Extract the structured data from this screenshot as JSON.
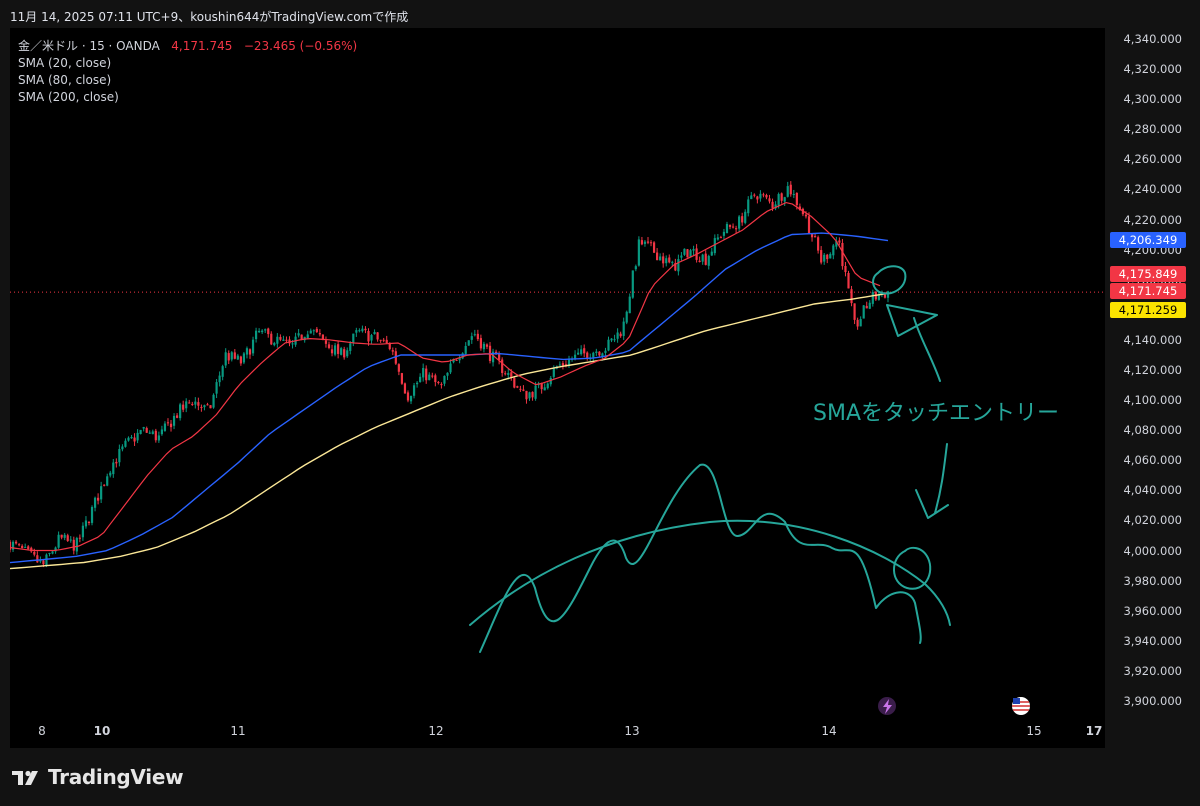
{
  "header": {
    "text": "11月 14, 2025 07:11 UTC+9、koushin644がTradingView.comで作成"
  },
  "legend": {
    "symbol": "金／米ドル · 15 · OANDA",
    "price": "4,171.745",
    "change": "−23.465 (−0.56%)",
    "sma20": "SMA (20, close)",
    "sma80": "SMA (80, close)",
    "sma200": "SMA (200, close)"
  },
  "price_tags": {
    "sma80": "4,206.349",
    "sma20": "4,175.849",
    "last": "4,171.745",
    "sma200": "4,171.259"
  },
  "annotation": {
    "text": "SMAをタッチエントリー"
  },
  "footer": {
    "brand": "TradingView"
  },
  "colors": {
    "up": "#089981",
    "down": "#f23645",
    "sma20": "#f23645",
    "sma80": "#2962ff",
    "sma200": "#fbe797",
    "drawing": "#26a69a",
    "background": "#000000"
  },
  "icons": [
    "lightning-icon",
    "us-flag-icon",
    "tradingview-logo-icon"
  ],
  "chart_data": {
    "type": "candlestick",
    "ylim": [
      3890,
      4350
    ],
    "yticks": [
      "4,340.000",
      "4,320.000",
      "4,300.000",
      "4,280.000",
      "4,260.000",
      "4,240.000",
      "4,220.000",
      "4,200.000",
      "4,180.000",
      "4,160.000",
      "4,140.000",
      "4,120.000",
      "4,100.000",
      "4,080.000",
      "4,060.000",
      "4,040.000",
      "4,020.000",
      "4,000.000",
      "3,980.000",
      "3,960.000",
      "3,940.000",
      "3,920.000",
      "3,900.000"
    ],
    "xticks": [
      {
        "label": "8",
        "bold": false
      },
      {
        "label": "10",
        "bold": true
      },
      {
        "label": "11",
        "bold": false
      },
      {
        "label": "12",
        "bold": false
      },
      {
        "label": "13",
        "bold": false
      },
      {
        "label": "14",
        "bold": false
      },
      {
        "label": "15",
        "bold": false
      },
      {
        "label": "17",
        "bold": true
      }
    ],
    "price_path": [
      4005,
      3998,
      3990,
      4008,
      4003,
      4028,
      4055,
      4070,
      4080,
      4075,
      4090,
      4100,
      4092,
      4130,
      4125,
      4145,
      4140,
      4135,
      4148,
      4138,
      4130,
      4145,
      4142,
      4135,
      4103,
      4118,
      4108,
      4130,
      4145,
      4130,
      4118,
      4103,
      4108,
      4122,
      4128,
      4132,
      4135,
      4148,
      4205,
      4198,
      4188,
      4200,
      4194,
      4212,
      4218,
      4238,
      4230,
      4242,
      4222,
      4192,
      4208,
      4148,
      4168,
      4172
    ],
    "sma20": [
      4002,
      4000,
      4000,
      4003,
      4010,
      4030,
      4050,
      4067,
      4076,
      4090,
      4110,
      4125,
      4138,
      4141,
      4140,
      4138,
      4137,
      4138,
      4128,
      4125,
      4130,
      4131,
      4118,
      4110,
      4115,
      4122,
      4128,
      4140,
      4175,
      4190,
      4197,
      4205,
      4213,
      4225,
      4232,
      4222,
      4208,
      4182,
      4176
    ],
    "sma80": [
      3992,
      3994,
      3996,
      4000,
      4010,
      4022,
      4040,
      4058,
      4078,
      4093,
      4108,
      4122,
      4130,
      4130,
      4130,
      4131,
      4129,
      4127,
      4128,
      4132,
      4150,
      4168,
      4187,
      4200,
      4210,
      4211,
      4209,
      4206
    ],
    "sma200": [
      3988,
      3990,
      3992,
      3996,
      4002,
      4012,
      4024,
      4040,
      4056,
      4070,
      4082,
      4092,
      4102,
      4110,
      4117,
      4122,
      4126,
      4130,
      4138,
      4146,
      4152,
      4158,
      4164,
      4167,
      4171
    ]
  }
}
